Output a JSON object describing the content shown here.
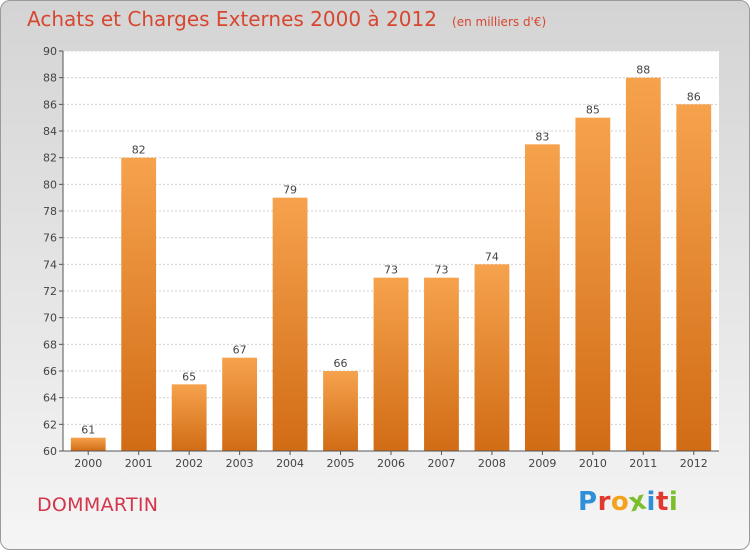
{
  "title": "Achats et Charges Externes 2000 à 2012",
  "unit": "(en milliers d'€)",
  "commune": "DOMMARTIN",
  "logo": {
    "letters": [
      "P",
      "r",
      "o",
      "x",
      "i",
      "t",
      "i"
    ],
    "colors": [
      "#2f8fd8",
      "#e03a2e",
      "#f2a21c",
      "#7bbf2a",
      "#2f8fd8",
      "#e03a2e",
      "#7bbf2a"
    ]
  },
  "colors": {
    "bar_light": "#f6a24d",
    "bar_dark": "#d16c15",
    "title": "#d7472f",
    "commune": "#d2354c"
  },
  "chart_data": {
    "type": "bar",
    "categories": [
      "2000",
      "2001",
      "2002",
      "2003",
      "2004",
      "2005",
      "2006",
      "2007",
      "2008",
      "2009",
      "2010",
      "2011",
      "2012"
    ],
    "values": [
      61,
      82,
      65,
      67,
      79,
      66,
      73,
      73,
      74,
      83,
      85,
      88,
      86
    ],
    "ylim": [
      60,
      90
    ],
    "yticks": [
      60,
      62,
      64,
      66,
      68,
      70,
      72,
      74,
      76,
      78,
      80,
      82,
      84,
      86,
      88,
      90
    ],
    "grid": true,
    "data_labels": true
  }
}
